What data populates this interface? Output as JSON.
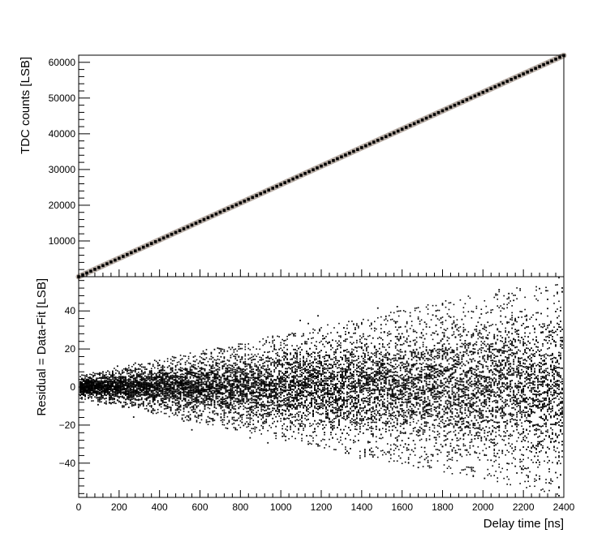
{
  "chart_data": [
    {
      "type": "scatter",
      "panel": "top",
      "title": "",
      "xlabel": "",
      "ylabel": "TDC counts [LSB]",
      "xlim": [
        0,
        2400
      ],
      "ylim": [
        0,
        62000
      ],
      "yticks": [
        10000,
        20000,
        30000,
        40000,
        50000,
        60000
      ],
      "x_tick_labels_shown": false,
      "fit_line": {
        "slope": 25.8,
        "intercept": 0,
        "color": "#b9aea6"
      },
      "series": [
        {
          "color": "#000000",
          "x_start": 0,
          "x_end": 2400,
          "x_step": 20,
          "slope": 25.8,
          "intercept": 0
        }
      ]
    },
    {
      "type": "scatter",
      "panel": "bottom",
      "title": "",
      "xlabel": "Delay time [ns]",
      "ylabel": "Residual = Data-Fit [LSB]",
      "xlim": [
        0,
        2400
      ],
      "ylim": [
        -58,
        58
      ],
      "xticks": [
        0,
        200,
        400,
        600,
        800,
        1000,
        1200,
        1400,
        1600,
        1800,
        2000,
        2200,
        2400
      ],
      "yticks": [
        -40,
        -20,
        0,
        20,
        40
      ],
      "residual_spread": {
        "at_x_0": 6,
        "at_x_2400": 58
      },
      "column_step": 8
    }
  ],
  "colors": {
    "axis": "#000000",
    "fit_band": "#b9aea6",
    "points": "#000000",
    "background": "#ffffff"
  }
}
